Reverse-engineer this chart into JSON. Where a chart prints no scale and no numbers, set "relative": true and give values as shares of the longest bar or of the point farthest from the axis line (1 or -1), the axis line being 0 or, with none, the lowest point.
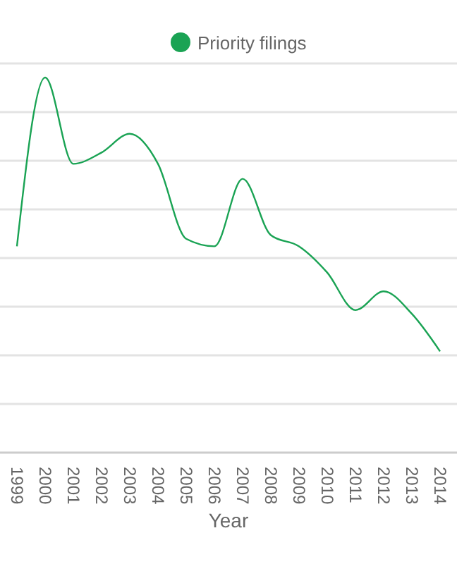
{
  "chart_data": {
    "type": "line",
    "xlabel": "Year",
    "categories": [
      "1999",
      "2000",
      "2001",
      "2002",
      "2003",
      "2004",
      "2005",
      "2006",
      "2007",
      "2008",
      "2009",
      "2010",
      "2011",
      "2012",
      "2013",
      "2014"
    ],
    "relative": true,
    "grid": "y",
    "legend": "top",
    "series": [
      {
        "name": "Priority filings",
        "color": "#1aa354",
        "values": [
          0.55,
          1,
          0.77,
          0.8,
          0.85,
          0.77,
          0.57,
          0.55,
          0.73,
          0.58,
          0.55,
          0.48,
          0.38,
          0.43,
          0.37,
          0.27
        ]
      }
    ]
  }
}
